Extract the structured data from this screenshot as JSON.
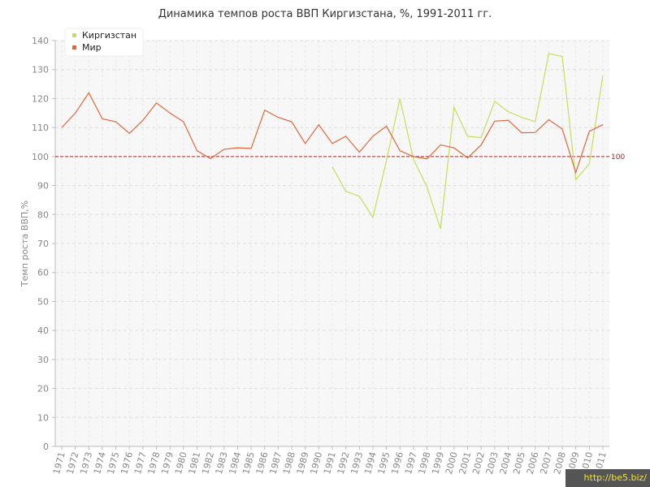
{
  "chart_data": {
    "type": "line",
    "title": "Динамика темпов роста ВВП Киргизстана, %, 1991-2011 гг.",
    "ylabel": "Темп роста ВВП,%",
    "xlabel": "",
    "ylim": [
      0,
      140
    ],
    "y_ticks": [
      0,
      10,
      20,
      30,
      40,
      50,
      60,
      70,
      80,
      90,
      100,
      110,
      120,
      130,
      140
    ],
    "categories": [
      "1971",
      "1972",
      "1973",
      "1974",
      "1975",
      "1976",
      "1977",
      "1978",
      "1979",
      "1980",
      "1981",
      "1982",
      "1983",
      "1984",
      "1985",
      "1986",
      "1987",
      "1988",
      "1989",
      "1990",
      "1991",
      "1992",
      "1993",
      "1994",
      "1995",
      "1996",
      "1997",
      "1998",
      "1999",
      "2000",
      "2001",
      "2002",
      "2003",
      "2004",
      "2005",
      "2006",
      "2007",
      "2008",
      "2009",
      "2010",
      "2011"
    ],
    "series": [
      {
        "name": "Киргизстан",
        "color": "#c2e05a",
        "values": [
          null,
          null,
          null,
          null,
          null,
          null,
          null,
          null,
          null,
          null,
          null,
          null,
          null,
          null,
          null,
          null,
          null,
          null,
          null,
          null,
          96.5,
          88,
          86.3,
          79,
          98.5,
          120,
          99,
          89.5,
          75,
          117,
          107,
          106.5,
          119,
          115.5,
          113.5,
          112,
          135.5,
          134.5,
          92,
          97.5,
          128
        ]
      },
      {
        "name": "Мир",
        "color": "#e0673a",
        "values": [
          110,
          115,
          122,
          113,
          112,
          108,
          112.5,
          118.5,
          115,
          112,
          102,
          99.3,
          102.5,
          103,
          102.8,
          116,
          113.5,
          112,
          104.5,
          111,
          104.5,
          107,
          101.5,
          107,
          110.5,
          102,
          100,
          99.2,
          104,
          103,
          99.5,
          104,
          112.2,
          112.5,
          108.2,
          108.3,
          112.7,
          109.5,
          94.5,
          108.7,
          111
        ]
      }
    ],
    "reference_line": {
      "value": 100,
      "label": "100",
      "color": "#a52a2a"
    },
    "grid": true,
    "legend_position": "top-left"
  },
  "watermark": "http://be5.biz/"
}
